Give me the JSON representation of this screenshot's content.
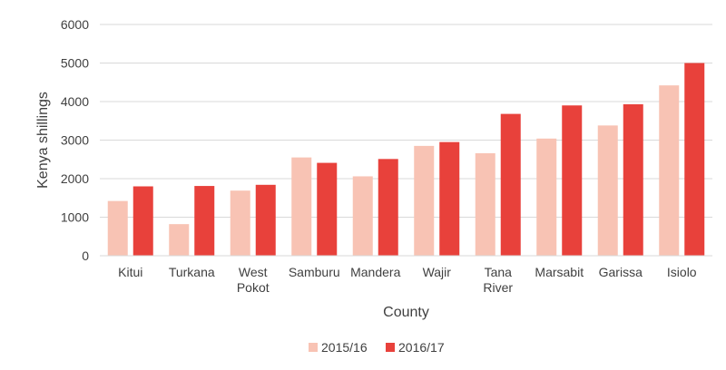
{
  "chart_data": {
    "type": "bar",
    "xlabel": "County",
    "ylabel": "Kenya shillings",
    "ylim": [
      0,
      6000
    ],
    "yticks": [
      0,
      1000,
      2000,
      3000,
      4000,
      5000,
      6000
    ],
    "grid": true,
    "legend_position": "bottom",
    "categories": [
      [
        "Kitui"
      ],
      [
        "Turkana"
      ],
      [
        "West",
        "Pokot"
      ],
      [
        "Samburu"
      ],
      [
        "Mandera"
      ],
      [
        "Wajir"
      ],
      [
        "Tana",
        "River"
      ],
      [
        "Marsabit"
      ],
      [
        "Garissa"
      ],
      [
        "Isiolo"
      ]
    ],
    "series": [
      {
        "name": "2015/16",
        "color": "#f8c3b4",
        "values": [
          1420,
          820,
          1690,
          2550,
          2060,
          2850,
          2660,
          3040,
          3380,
          4420
        ]
      },
      {
        "name": "2016/17",
        "color": "#e8413b",
        "values": [
          1800,
          1810,
          1840,
          2410,
          2510,
          2950,
          3680,
          3900,
          3930,
          5000
        ]
      }
    ]
  }
}
